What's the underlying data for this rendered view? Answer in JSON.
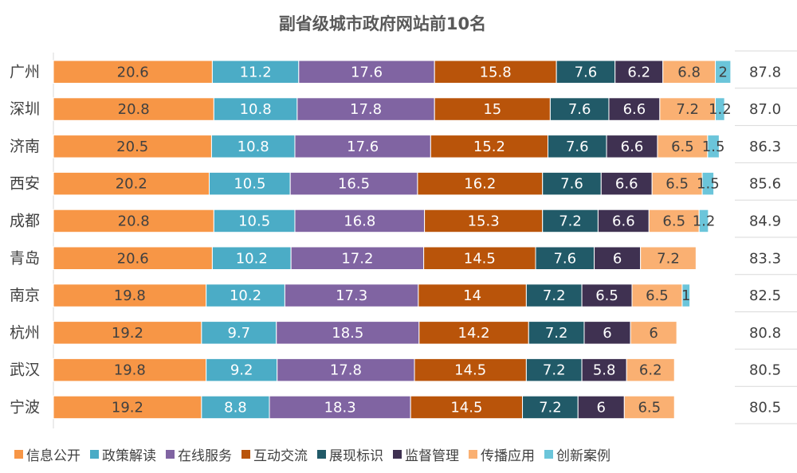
{
  "chart_data": {
    "type": "bar",
    "orientation": "horizontal",
    "stacked": true,
    "title": "副省级城市政府网站前10名",
    "categories": [
      "广州",
      "深圳",
      "济南",
      "西安",
      "成都",
      "青岛",
      "南京",
      "杭州",
      "武汉",
      "宁波"
    ],
    "series": [
      {
        "name": "信息公开",
        "color": "#F79646",
        "values": [
          20.6,
          20.8,
          20.5,
          20.2,
          20.8,
          20.6,
          19.8,
          19.2,
          19.8,
          19.2
        ]
      },
      {
        "name": "政策解读",
        "color": "#4BACC6",
        "values": [
          11.2,
          10.8,
          10.8,
          10.5,
          10.5,
          10.2,
          10.2,
          9.7,
          9.2,
          8.8
        ]
      },
      {
        "name": "在线服务",
        "color": "#8064A2",
        "values": [
          17.6,
          17.8,
          17.6,
          16.5,
          16.8,
          17.2,
          17.3,
          18.5,
          17.8,
          18.3
        ]
      },
      {
        "name": "互动交流",
        "color": "#B9540A",
        "values": [
          15.8,
          15,
          15.2,
          16.2,
          15.3,
          14.5,
          14,
          14.2,
          14.5,
          14.5
        ]
      },
      {
        "name": "展现标识",
        "color": "#215A68",
        "values": [
          7.6,
          7.6,
          7.6,
          7.6,
          7.2,
          7.6,
          7.2,
          7.2,
          7.2,
          7.2
        ]
      },
      {
        "name": "监督管理",
        "color": "#3F3151",
        "values": [
          6.2,
          6.6,
          6.6,
          6.6,
          6.6,
          6,
          6.5,
          6,
          5.8,
          6
        ]
      },
      {
        "name": "传播应用",
        "color": "#FAB072",
        "values": [
          6.8,
          7.2,
          6.5,
          6.5,
          6.5,
          7.2,
          6.5,
          6,
          6.2,
          6.5
        ]
      },
      {
        "name": "创新案例",
        "color": "#6BC5DA",
        "values": [
          2,
          1.2,
          1.5,
          1.5,
          1.2,
          null,
          1,
          null,
          null,
          null
        ]
      }
    ],
    "totals": [
      "87.8",
      "87.0",
      "86.3",
      "85.6",
      "84.9",
      "83.3",
      "82.5",
      "80.8",
      "80.5",
      "80.5"
    ],
    "xlim": [
      0,
      100
    ],
    "legend_position": "bottom",
    "grid": false
  }
}
